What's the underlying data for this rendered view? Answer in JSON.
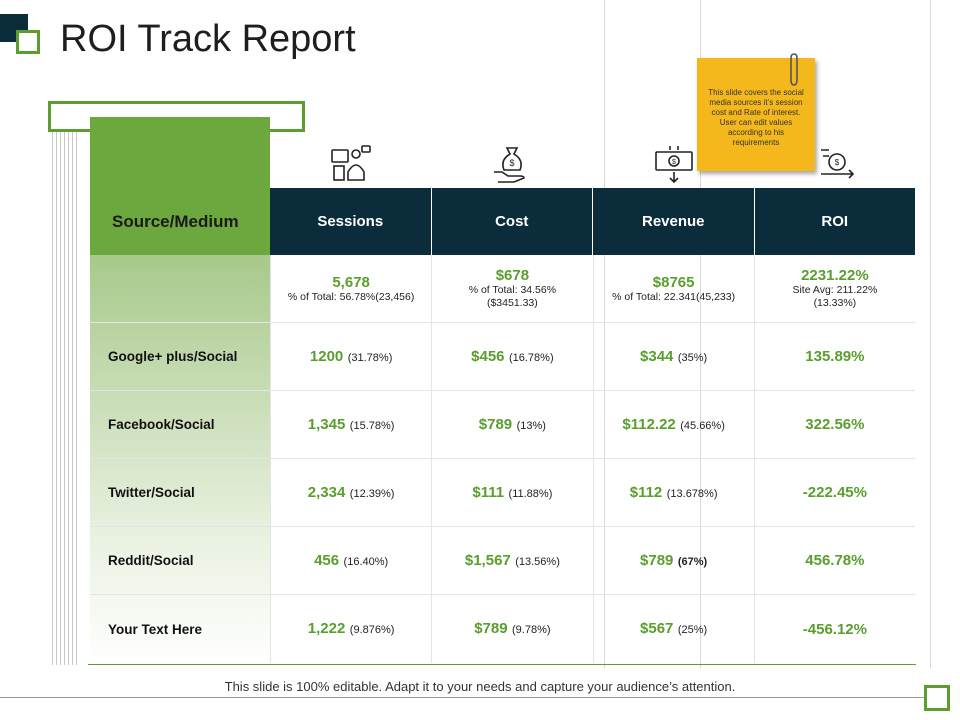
{
  "title": "ROI Track Report",
  "colors": {
    "accent": "#5a9e2e",
    "dark": "#0b2c3a",
    "note": "#f4b81c"
  },
  "source_header": "Source/Medium",
  "columns": [
    "Sessions",
    "Cost",
    "Revenue",
    "ROI"
  ],
  "column_icons": [
    "people-screen-icon",
    "money-bag-hand-icon",
    "cash-register-icon",
    "roi-cycle-icon"
  ],
  "note": "This slide covers the social media sources it’s session cost and Rate of interest. User can edit values according to his requirements",
  "totals": {
    "sessions": {
      "value": "5,678",
      "sub": "% of Total: 56.78%(23,456)"
    },
    "cost": {
      "value": "$678",
      "sub": "% of Total: 34.56%($3451.33)"
    },
    "revenue": {
      "value": "$8765",
      "sub": "% of Total: 22.341(45,233)"
    },
    "roi": {
      "value": "2231.22%",
      "sub": "Site Avg: 211.22%(13.33%)"
    }
  },
  "rows": [
    {
      "label": "Google+ plus/Social",
      "sessions": "1200",
      "sessions_pct": "(31.78%)",
      "cost": "$456",
      "cost_pct": "(16.78%)",
      "revenue": "$344",
      "revenue_pct": "(35%)",
      "roi": "135.89%"
    },
    {
      "label": "Facebook/Social",
      "sessions": "1,345",
      "sessions_pct": "(15.78%)",
      "cost": "$789",
      "cost_pct": "(13%)",
      "revenue": "$112.22",
      "revenue_pct": "(45.66%)",
      "roi": "322.56%"
    },
    {
      "label": "Twitter/Social",
      "sessions": "2,334",
      "sessions_pct": "(12.39%)",
      "cost": "$111",
      "cost_pct": "(11.88%)",
      "revenue": "$112",
      "revenue_pct": "(13.678%)",
      "roi": "-222.45%"
    },
    {
      "label": "Reddit/Social",
      "sessions": "456",
      "sessions_pct": "(16.40%)",
      "cost": "$1,567",
      "cost_pct": "(13.56%)",
      "revenue": "$789",
      "revenue_pct": "(67%)",
      "roi": "456.78%"
    },
    {
      "label": "Your Text Here",
      "sessions": "1,222",
      "sessions_pct": "(9.876%)",
      "cost": "$789",
      "cost_pct": "(9.78%)",
      "revenue": "$567",
      "revenue_pct": "(25%)",
      "roi": "-456.12%"
    }
  ],
  "footer": "This slide is 100% editable. Adapt it to your needs and capture your audience’s attention."
}
